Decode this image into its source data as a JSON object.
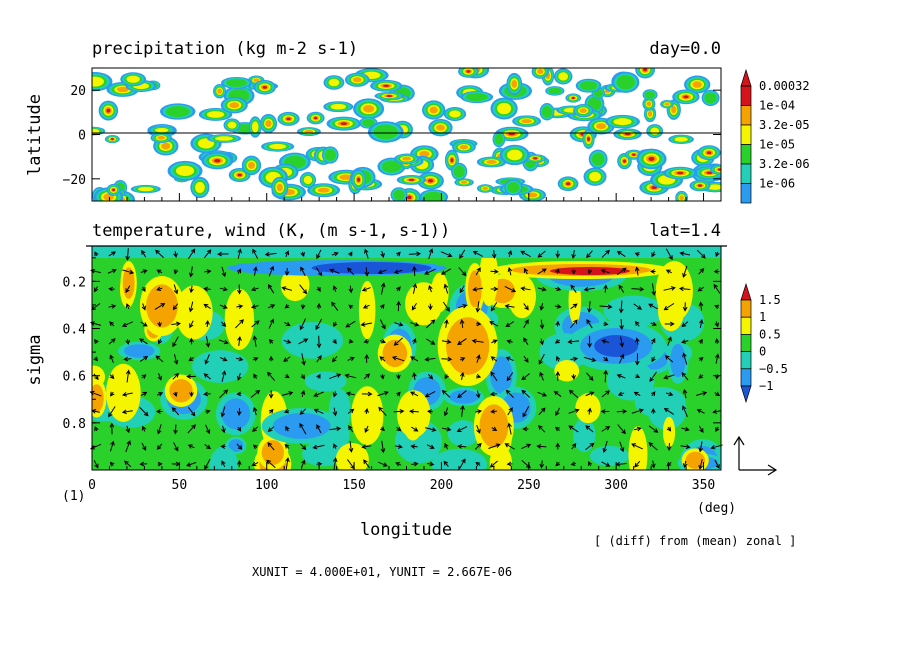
{
  "chart_data": [
    {
      "type": "heatmap",
      "title": "precipitation (kg m-2 s-1)",
      "corner_label": "day=0.0",
      "ylabel": "latitude",
      "xlim": [
        0,
        360
      ],
      "ylim": [
        -30,
        30
      ],
      "yticks": [
        "20",
        "0",
        "−20"
      ],
      "yticks_values": [
        20,
        0,
        -20
      ],
      "colorbar": {
        "labels": [
          "0.00032",
          "1e-04",
          "3.2e-05",
          "1e-05",
          "3.2e-06",
          "1e-06"
        ],
        "colors": [
          "#d4141a",
          "#f5a300",
          "#f5f500",
          "#2ad12a",
          "#22d0b8",
          "#2a9bf0"
        ]
      },
      "zero_line": true
    },
    {
      "type": "heatmap",
      "title": "temperature, wind (K, (m s-1, s-1))",
      "corner_label": "lat=1.4",
      "ylabel": "sigma",
      "xlabel": "longitude",
      "x_unit": "(deg)",
      "corner_index": "(1)",
      "xlim": [
        0,
        360
      ],
      "ylim": [
        1.0,
        0.05
      ],
      "xticks": [
        0,
        50,
        100,
        150,
        200,
        250,
        300,
        350
      ],
      "yticks": [
        0.2,
        0.4,
        0.6,
        0.8
      ],
      "colorbar": {
        "labels": [
          "1.5",
          "1",
          "0.5",
          "0",
          "−0.5",
          "−1"
        ],
        "colors": [
          "#d4141a",
          "#f5a300",
          "#f5f500",
          "#2ad12a",
          "#22d0b8",
          "#2a9bf0",
          "#1a55d8"
        ]
      },
      "note": "[ (diff) from (mean) zonal ]",
      "units_line": "XUNIT = 4.000E+01, YUNIT = 2.667E-06"
    }
  ]
}
